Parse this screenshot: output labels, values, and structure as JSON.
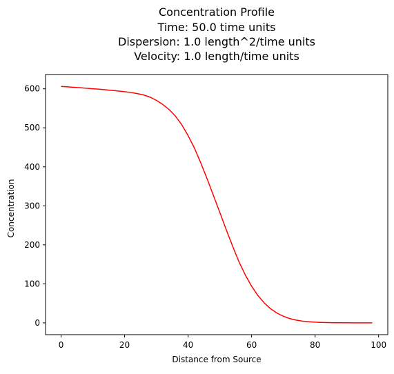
{
  "chart_data": {
    "type": "line",
    "title_lines": [
      "Concentration Profile",
      "Time: 50.0 time units",
      "Dispersion: 1.0 length^2/time units",
      "Velocity: 1.0 length/time units"
    ],
    "xlabel": "Distance from Source",
    "ylabel": "Concentration",
    "xlim": [
      -4.9,
      102.9
    ],
    "ylim": [
      -30.3,
      636.6
    ],
    "xticks": [
      0,
      20,
      40,
      60,
      80,
      100
    ],
    "yticks": [
      0,
      100,
      200,
      300,
      400,
      500,
      600
    ],
    "grid": false,
    "series": [
      {
        "color": "#ff0000",
        "x": [
          0,
          2,
          4,
          6,
          8,
          10,
          12,
          14,
          16,
          18,
          20,
          22,
          24,
          26,
          28,
          30,
          32,
          34,
          36,
          38,
          40,
          42,
          44,
          46,
          48,
          50,
          52,
          54,
          56,
          58,
          60,
          62,
          64,
          66,
          68,
          70,
          72,
          74,
          76,
          78,
          80,
          82,
          84,
          86,
          88,
          90,
          92,
          94,
          96,
          98
        ],
        "y": [
          606.1,
          605.0,
          603.9,
          602.7,
          601.5,
          600.2,
          598.9,
          597.5,
          596.0,
          594.4,
          592.6,
          590.5,
          587.8,
          584.2,
          578.7,
          570.5,
          560.0,
          547.0,
          530.0,
          508.0,
          480.0,
          448.0,
          410.0,
          369.0,
          326.0,
          283.0,
          239.0,
          197.0,
          157.0,
          123.0,
          94.0,
          70.0,
          51.0,
          36.0,
          25.0,
          17.0,
          11.0,
          7.0,
          4.5,
          2.8,
          1.7,
          1.0,
          0.6,
          0.3,
          0.2,
          0.1,
          0.05,
          0.03,
          0.01,
          0.0
        ]
      }
    ]
  }
}
